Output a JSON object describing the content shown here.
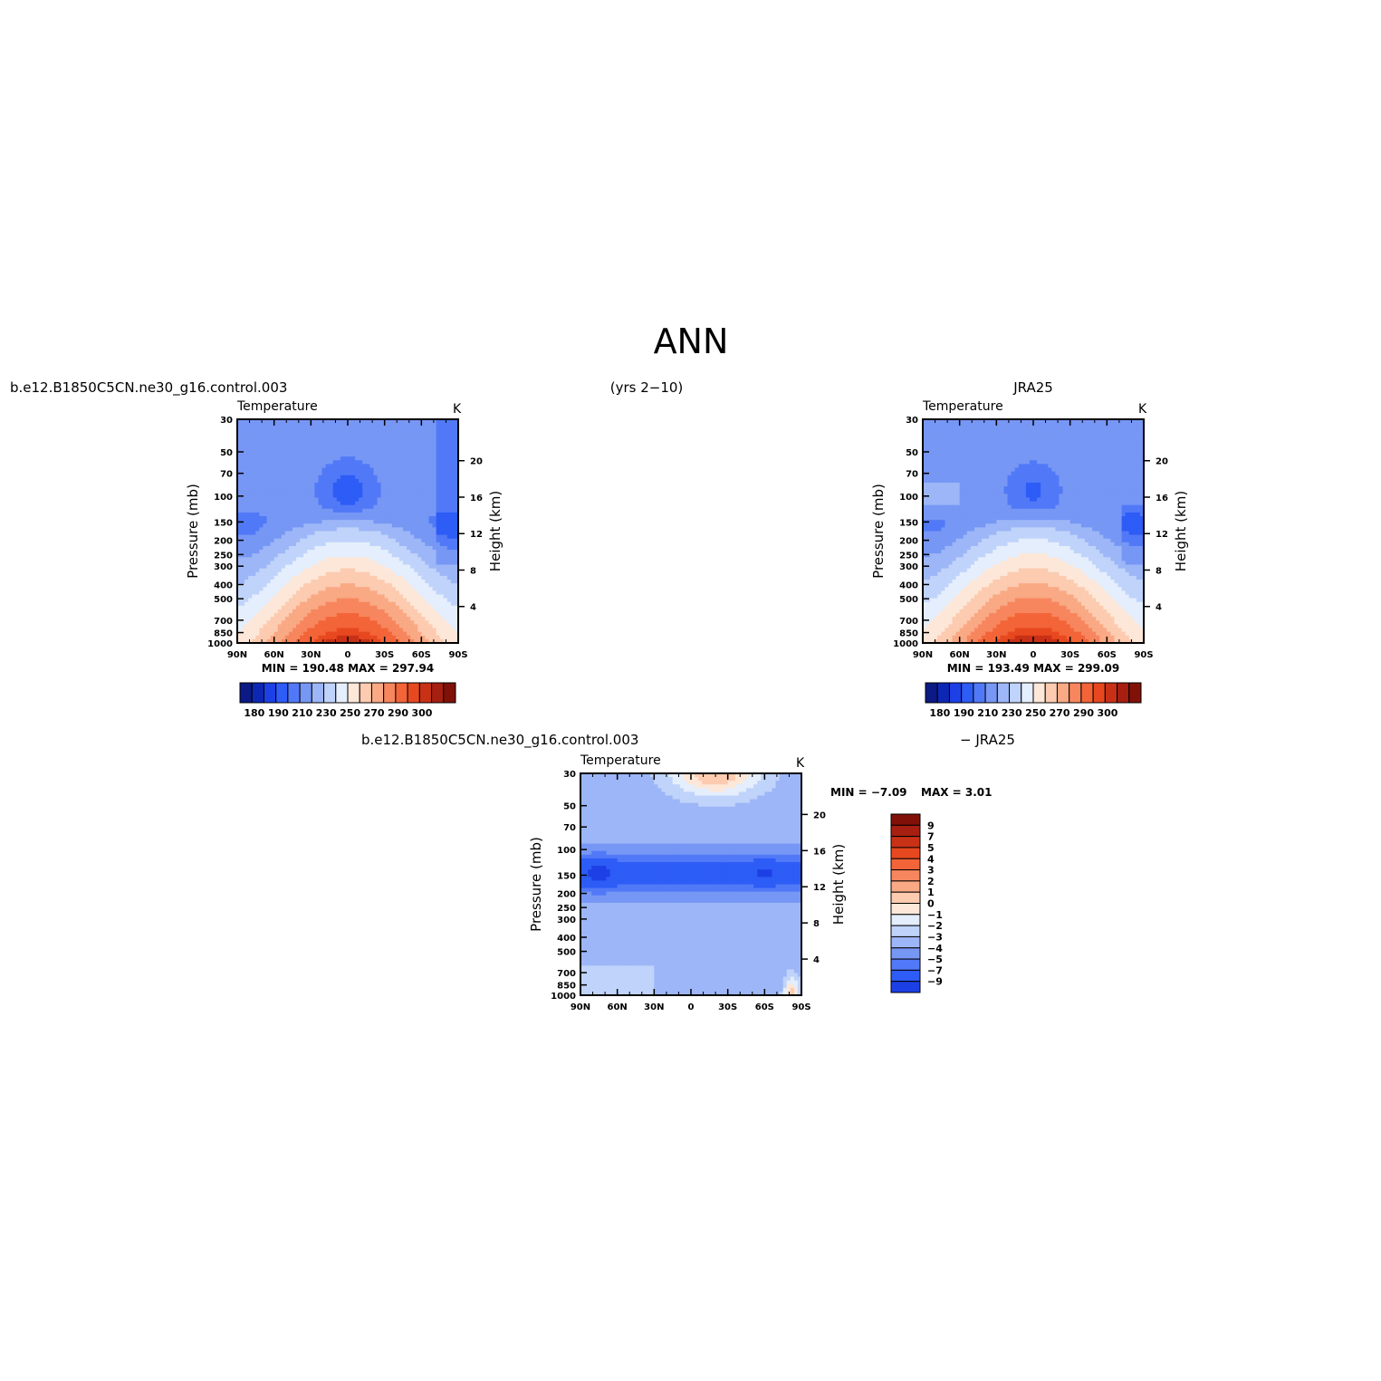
{
  "figure": {
    "title": "ANN",
    "case_name": "b.e12.B1850C5CN.ne30_g16.control.003",
    "years_label": "(yrs 2−10)",
    "obs_name": "JRA25",
    "diff_label_left": "b.e12.B1850C5CN.ne30_g16.control.003",
    "diff_label_right": "− JRA25"
  },
  "colors": {
    "temp_palette": [
      "#0b1a85",
      "#0d27b5",
      "#1c40e6",
      "#2d5cf6",
      "#5179f7",
      "#7797f5",
      "#9db6f7",
      "#c0d3fa",
      "#e4eefc",
      "#fde7d8",
      "#fccbb0",
      "#f9a984",
      "#f7865e",
      "#f36438",
      "#e8481f",
      "#c83116",
      "#a61f10",
      "#811108"
    ],
    "diff_palette": [
      "#0b1a85",
      "#0d27b5",
      "#1c40e6",
      "#2d5cf6",
      "#5179f7",
      "#7797f5",
      "#9db6f7",
      "#c0d3fa",
      "#e4eefc",
      "#fde7d8",
      "#fccbb0",
      "#f9a984",
      "#f7865e",
      "#f36438",
      "#e8481f",
      "#c83116",
      "#a61f10",
      "#811108"
    ]
  },
  "chart_data": [
    {
      "type": "heatmap",
      "title": "Temperature",
      "units": "K",
      "xlabel": "",
      "ylabel": "Pressure (mb)",
      "y2label": "Height (km)",
      "x_ticks": [
        "90N",
        "60N",
        "30N",
        "0",
        "30S",
        "60S",
        "90S"
      ],
      "y_ticks": [
        30,
        50,
        70,
        100,
        150,
        200,
        250,
        300,
        400,
        500,
        700,
        850,
        1000
      ],
      "y2_ticks": [
        4,
        8,
        12,
        16,
        20
      ],
      "xlim": [
        90,
        -90
      ],
      "ylim": [
        1000,
        30
      ],
      "stats": "MIN =  190.48   MAX =  297.94",
      "colorbar_labels": [
        "180",
        "190",
        "210",
        "230",
        "250",
        "270",
        "290",
        "300"
      ],
      "contour_levels": [
        180,
        185,
        190,
        195,
        200,
        210,
        220,
        230,
        240,
        250,
        260,
        270,
        280,
        290,
        295,
        300,
        305
      ]
    },
    {
      "type": "heatmap",
      "title": "Temperature",
      "units": "K",
      "xlabel": "",
      "ylabel": "Pressure (mb)",
      "y2label": "Height (km)",
      "x_ticks": [
        "90N",
        "60N",
        "30N",
        "0",
        "30S",
        "60S",
        "90S"
      ],
      "y_ticks": [
        30,
        50,
        70,
        100,
        150,
        200,
        250,
        300,
        400,
        500,
        700,
        850,
        1000
      ],
      "y2_ticks": [
        4,
        8,
        12,
        16,
        20
      ],
      "xlim": [
        90,
        -90
      ],
      "ylim": [
        1000,
        30
      ],
      "stats": "MIN =  193.49   MAX =  299.09",
      "colorbar_labels": [
        "180",
        "190",
        "210",
        "230",
        "250",
        "270",
        "290",
        "300"
      ],
      "contour_levels": [
        180,
        185,
        190,
        195,
        200,
        210,
        220,
        230,
        240,
        250,
        260,
        270,
        280,
        290,
        295,
        300,
        305
      ]
    },
    {
      "type": "heatmap",
      "title": "Temperature",
      "units": "K",
      "xlabel": "",
      "ylabel": "Pressure (mb)",
      "y2label": "Height (km)",
      "x_ticks": [
        "90N",
        "60N",
        "30N",
        "0",
        "30S",
        "60S",
        "90S"
      ],
      "y_ticks": [
        30,
        50,
        70,
        100,
        150,
        200,
        250,
        300,
        400,
        500,
        700,
        850,
        1000
      ],
      "y2_ticks": [
        4,
        8,
        12,
        16,
        20
      ],
      "xlim": [
        90,
        -90
      ],
      "ylim": [
        1000,
        30
      ],
      "stats_min": "MIN =   −7.09",
      "stats_max": "MAX =    3.01",
      "colorbar_labels": [
        "9",
        "7",
        "5",
        "4",
        "3",
        "2",
        "1",
        "0",
        "−1",
        "−2",
        "−3",
        "−4",
        "−5",
        "−7",
        "−9"
      ]
    }
  ]
}
